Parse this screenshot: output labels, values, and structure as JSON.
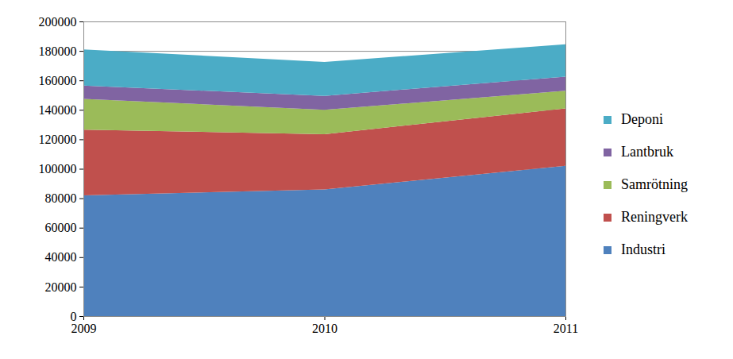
{
  "chart_data": {
    "type": "area",
    "stacked": true,
    "grid": true,
    "legend": "right",
    "x": [
      2009,
      2010,
      2011
    ],
    "xlim": [
      2009,
      2011
    ],
    "xticks": [
      2009,
      2010,
      2011
    ],
    "ylim": [
      0,
      200000
    ],
    "yticks": [
      0,
      20000,
      40000,
      60000,
      80000,
      100000,
      120000,
      140000,
      160000,
      180000,
      200000
    ],
    "series": [
      {
        "name": "Industri",
        "color": "#4f81bd",
        "values": [
          82000,
          86000,
          102000
        ]
      },
      {
        "name": "Reningverk",
        "color": "#c0504d",
        "values": [
          44500,
          37500,
          39000
        ]
      },
      {
        "name": "Samrötning",
        "color": "#9bbb59",
        "values": [
          21000,
          16500,
          12000
        ]
      },
      {
        "name": "Lantbruk",
        "color": "#8064a2",
        "values": [
          9000,
          9500,
          9500
        ]
      },
      {
        "name": "Deponi",
        "color": "#4bacc6",
        "values": [
          24500,
          23000,
          22000
        ]
      }
    ]
  }
}
